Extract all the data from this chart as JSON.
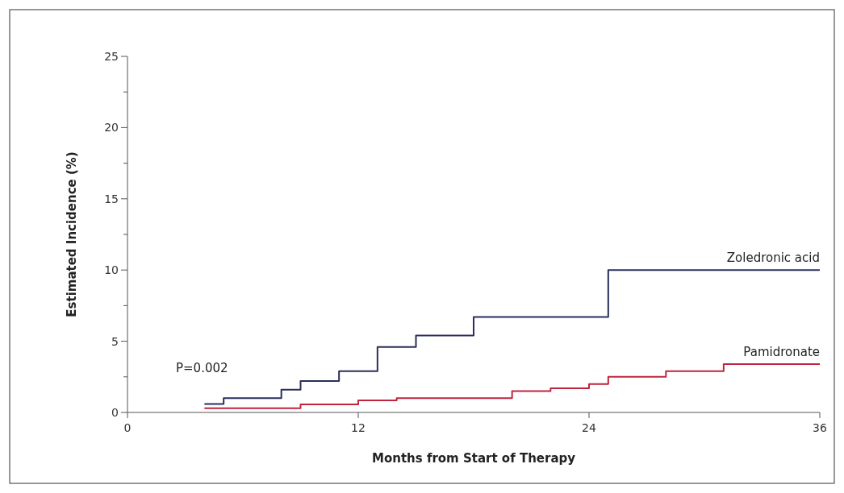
{
  "chart_data": {
    "type": "step",
    "xlabel": "Months from Start of Therapy",
    "ylabel": "Estimated Incidence (%)",
    "xlim": [
      0,
      36
    ],
    "xticks": [
      0,
      12,
      24,
      36
    ],
    "ylim": [
      0,
      25
    ],
    "yticks": [
      0,
      {
        "value": 2.5,
        "label": null
      },
      5,
      {
        "value": 7.5,
        "label": null
      },
      10,
      {
        "value": 12.5,
        "label": null
      },
      15,
      {
        "value": 17.5,
        "label": null
      },
      20,
      {
        "value": 22.5,
        "label": null
      },
      25
    ],
    "grid": false,
    "annotations": [
      "P=0.002"
    ],
    "series": [
      {
        "name": "Zoledronic acid",
        "color": "#2b2e5c",
        "x": [
          4,
          5,
          8,
          9,
          11,
          13,
          15,
          18,
          25,
          36
        ],
        "values": [
          0.6,
          1.0,
          1.6,
          2.2,
          2.9,
          4.6,
          5.4,
          6.7,
          10.0,
          10.0
        ]
      },
      {
        "name": "Pamidronate",
        "color": "#c0243c",
        "x": [
          4,
          9,
          12,
          14,
          20,
          22,
          24,
          25,
          28,
          31,
          36
        ],
        "values": [
          0.3,
          0.56,
          0.85,
          1.0,
          1.5,
          1.7,
          2.0,
          2.5,
          2.9,
          3.4,
          3.4
        ]
      }
    ]
  }
}
